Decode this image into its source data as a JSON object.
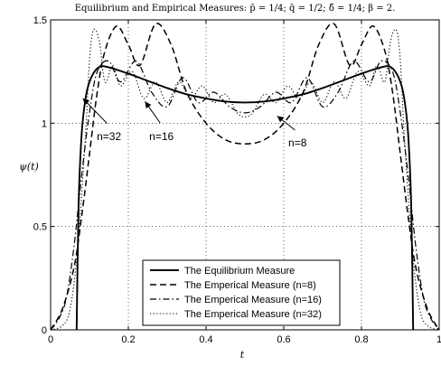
{
  "chart_data": {
    "type": "line",
    "title": "Equilibrium and Empirical Measures: p̄ = 1/4; q̄ = 1/2; δ̄ = 1/4; β = 2.",
    "xlabel": "t",
    "ylabel": "ψ(t)",
    "xlim": [
      0,
      1
    ],
    "ylim": [
      0,
      1.5
    ],
    "xticks": [
      "0",
      "0.2",
      "0.4",
      "0.6",
      "0.8",
      "1"
    ],
    "yticks": [
      "0",
      "0.5",
      "1",
      "1.5"
    ],
    "grid": true,
    "legend_position": "bottom-center",
    "series": [
      {
        "name": "The Equilibrium Measure",
        "style": "solid",
        "x": [
          0.067,
          0.072,
          0.08,
          0.09,
          0.1,
          0.115,
          0.13,
          0.15,
          0.2,
          0.25,
          0.3,
          0.35,
          0.4,
          0.45,
          0.5,
          0.55,
          0.6,
          0.65,
          0.7,
          0.75,
          0.8,
          0.85,
          0.87,
          0.885,
          0.9,
          0.91,
          0.92,
          0.928,
          0.933
        ],
        "y": [
          0.0,
          0.6,
          0.95,
          1.12,
          1.2,
          1.255,
          1.275,
          1.27,
          1.24,
          1.205,
          1.17,
          1.14,
          1.12,
          1.105,
          1.1,
          1.105,
          1.12,
          1.14,
          1.17,
          1.205,
          1.24,
          1.27,
          1.275,
          1.255,
          1.2,
          1.12,
          0.95,
          0.6,
          0.0
        ]
      },
      {
        "name": "The Emperical Measure (n=8)",
        "style": "dashed",
        "x": [
          0.0,
          0.03,
          0.06,
          0.08,
          0.1,
          0.12,
          0.14,
          0.17,
          0.2,
          0.23,
          0.27,
          0.31,
          0.35,
          0.4,
          0.45,
          0.5,
          0.55,
          0.6,
          0.65,
          0.69,
          0.73,
          0.77,
          0.8,
          0.83,
          0.86,
          0.88,
          0.9,
          0.92,
          0.94,
          0.97,
          1.0
        ],
        "y": [
          0.0,
          0.1,
          0.3,
          0.55,
          0.85,
          1.15,
          1.35,
          1.47,
          1.38,
          1.28,
          1.48,
          1.38,
          1.15,
          1.0,
          0.92,
          0.9,
          0.92,
          1.0,
          1.15,
          1.38,
          1.48,
          1.28,
          1.38,
          1.47,
          1.35,
          1.15,
          0.85,
          0.55,
          0.3,
          0.1,
          0.0
        ]
      },
      {
        "name": "The Emperical Measure (n=16)",
        "style": "dashdot",
        "x": [
          0.0,
          0.02,
          0.04,
          0.06,
          0.08,
          0.1,
          0.12,
          0.15,
          0.18,
          0.22,
          0.26,
          0.3,
          0.34,
          0.38,
          0.42,
          0.46,
          0.5,
          0.54,
          0.58,
          0.62,
          0.66,
          0.7,
          0.74,
          0.78,
          0.82,
          0.85,
          0.88,
          0.9,
          0.92,
          0.94,
          0.96,
          0.98,
          1.0
        ],
        "y": [
          0.0,
          0.05,
          0.15,
          0.4,
          0.75,
          1.05,
          1.25,
          1.3,
          1.2,
          1.3,
          1.15,
          1.08,
          1.22,
          1.1,
          1.15,
          1.08,
          1.05,
          1.08,
          1.15,
          1.1,
          1.22,
          1.08,
          1.15,
          1.3,
          1.2,
          1.3,
          1.25,
          1.05,
          0.75,
          0.4,
          0.15,
          0.05,
          0.0
        ]
      },
      {
        "name": "The Emperical Measure (n=32)",
        "style": "dotted",
        "x": [
          0.0,
          0.03,
          0.05,
          0.07,
          0.09,
          0.1,
          0.11,
          0.125,
          0.14,
          0.16,
          0.18,
          0.21,
          0.24,
          0.27,
          0.3,
          0.33,
          0.36,
          0.39,
          0.42,
          0.45,
          0.48,
          0.5,
          0.52,
          0.55,
          0.58,
          0.61,
          0.64,
          0.67,
          0.7,
          0.73,
          0.76,
          0.79,
          0.82,
          0.84,
          0.86,
          0.875,
          0.89,
          0.9,
          0.91,
          0.93,
          0.95,
          0.97,
          1.0
        ],
        "y": [
          0.0,
          0.02,
          0.1,
          0.4,
          0.95,
          1.3,
          1.45,
          1.4,
          1.2,
          1.28,
          1.18,
          1.25,
          1.12,
          1.2,
          1.1,
          1.2,
          1.12,
          1.18,
          1.1,
          1.14,
          1.05,
          1.03,
          1.05,
          1.14,
          1.1,
          1.18,
          1.12,
          1.2,
          1.1,
          1.2,
          1.12,
          1.25,
          1.18,
          1.28,
          1.2,
          1.4,
          1.45,
          1.3,
          0.95,
          0.4,
          0.1,
          0.02,
          0.0
        ]
      }
    ],
    "annotations": [
      {
        "text": "n=32",
        "x": 0.155,
        "y": 0.98,
        "target_x": 0.083,
        "target_y": 1.12
      },
      {
        "text": "n=16",
        "x": 0.29,
        "y": 0.98,
        "target_x": 0.243,
        "target_y": 1.105
      },
      {
        "text": "n=8",
        "x": 0.64,
        "y": 0.95,
        "target_x": 0.583,
        "target_y": 1.035
      }
    ]
  }
}
